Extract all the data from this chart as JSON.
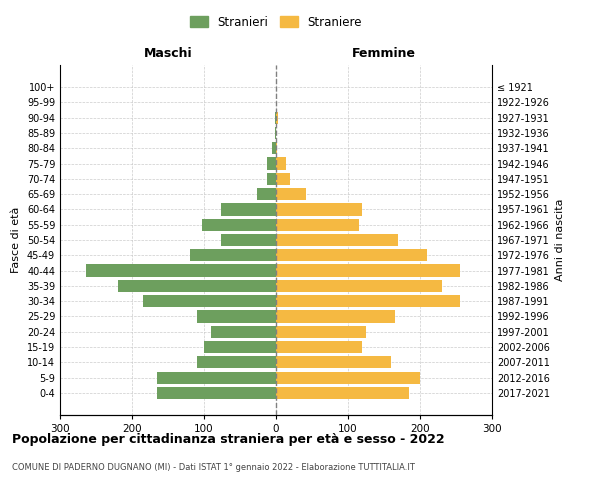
{
  "age_groups": [
    "0-4",
    "5-9",
    "10-14",
    "15-19",
    "20-24",
    "25-29",
    "30-34",
    "35-39",
    "40-44",
    "45-49",
    "50-54",
    "55-59",
    "60-64",
    "65-69",
    "70-74",
    "75-79",
    "80-84",
    "85-89",
    "90-94",
    "95-99",
    "100+"
  ],
  "birth_years": [
    "2017-2021",
    "2012-2016",
    "2007-2011",
    "2002-2006",
    "1997-2001",
    "1992-1996",
    "1987-1991",
    "1982-1986",
    "1977-1981",
    "1972-1976",
    "1967-1971",
    "1962-1966",
    "1957-1961",
    "1952-1956",
    "1947-1951",
    "1942-1946",
    "1937-1941",
    "1932-1936",
    "1927-1931",
    "1922-1926",
    "≤ 1921"
  ],
  "males": [
    165,
    165,
    110,
    100,
    90,
    110,
    185,
    220,
    264,
    120,
    77,
    103,
    77,
    26,
    12,
    13,
    5,
    1,
    1,
    0,
    0
  ],
  "females": [
    185,
    200,
    160,
    120,
    125,
    165,
    255,
    230,
    255,
    210,
    170,
    115,
    120,
    42,
    20,
    14,
    1,
    0,
    3,
    0,
    0
  ],
  "male_color": "#6d9f5e",
  "female_color": "#f5b942",
  "title": "Popolazione per cittadinanza straniera per età e sesso - 2022",
  "subtitle": "COMUNE DI PADERNO DUGNANO (MI) - Dati ISTAT 1° gennaio 2022 - Elaborazione TUTTITALIA.IT",
  "ylabel_left": "Fasce di età",
  "ylabel_right": "Anni di nascita",
  "xlabel_left": "Maschi",
  "xlabel_right": "Femmine",
  "xlim": 300,
  "legend_stranieri": "Stranieri",
  "legend_straniere": "Straniere",
  "background_color": "#ffffff",
  "grid_color": "#cccccc",
  "bar_height": 0.8
}
